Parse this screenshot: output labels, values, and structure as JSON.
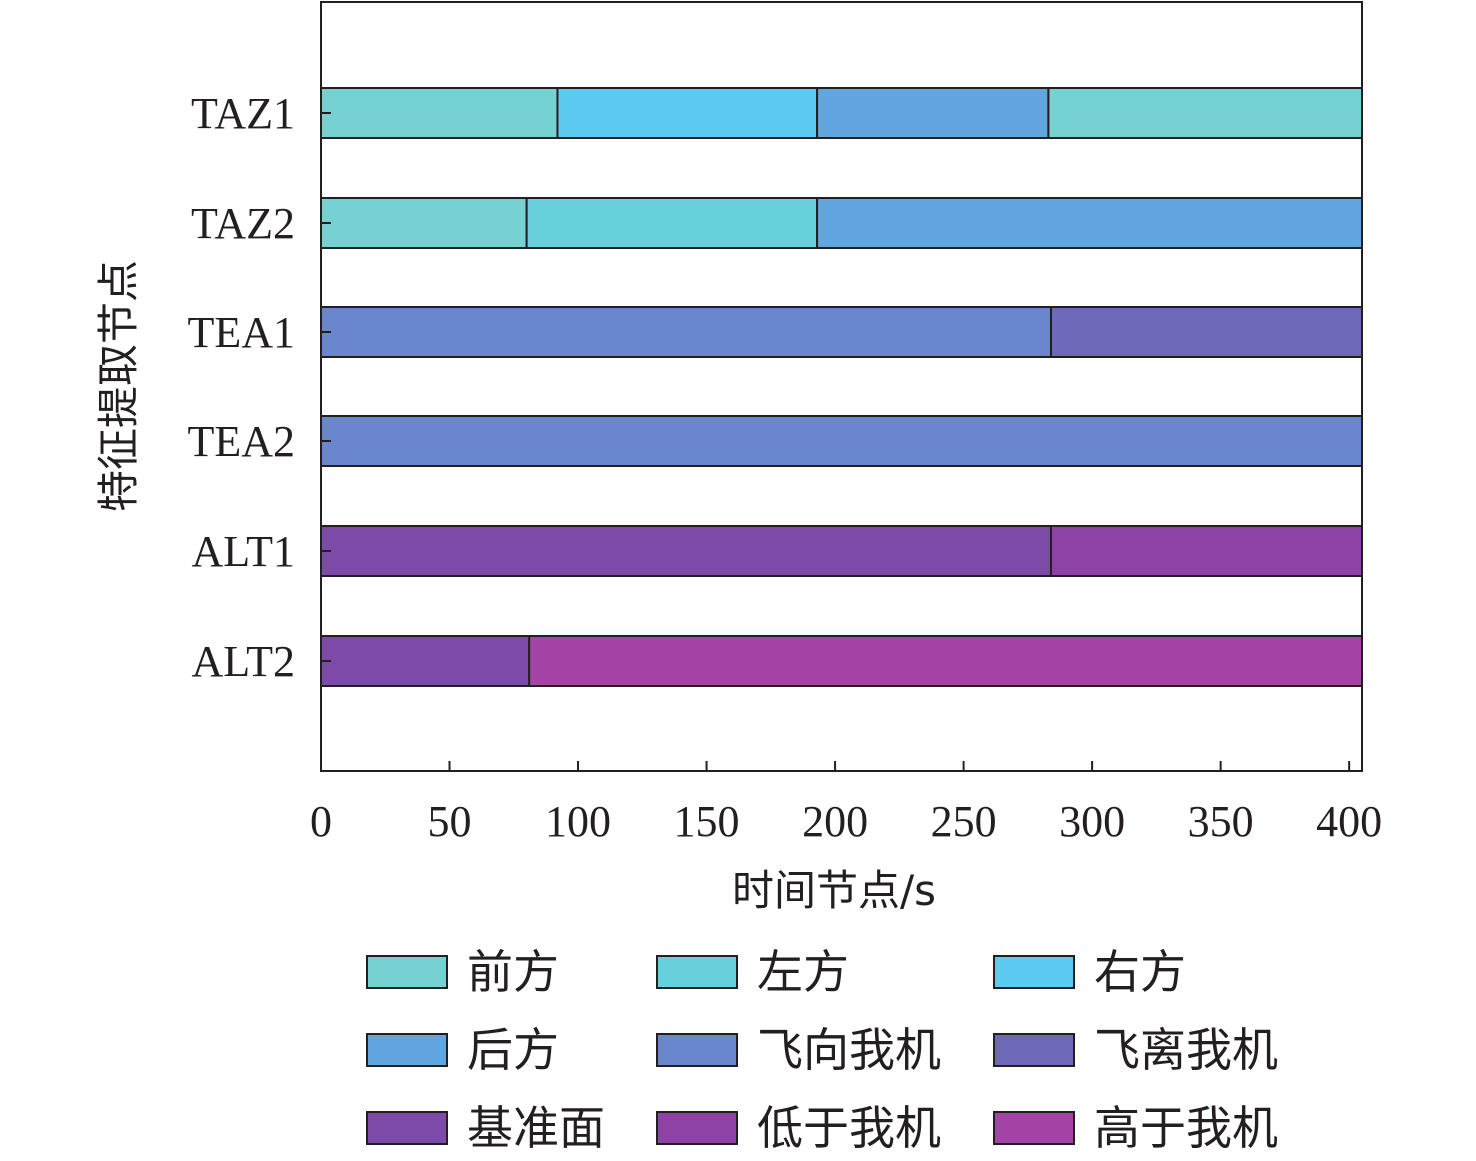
{
  "chart_data": {
    "type": "bar",
    "orientation": "horizontal-stacked-timeline",
    "xlabel": "时间节点/s",
    "ylabel": "特征提取节点",
    "xlim": [
      0,
      405
    ],
    "xticks": [
      0,
      50,
      100,
      150,
      200,
      250,
      300,
      350,
      400
    ],
    "categories": [
      "TAZ1",
      "TAZ2",
      "TEA1",
      "TEA2",
      "ALT1",
      "ALT2"
    ],
    "series": [
      {
        "category": "TAZ1",
        "segments": [
          {
            "start": 0,
            "end": 92,
            "state": "前方"
          },
          {
            "start": 92,
            "end": 193,
            "state": "右方"
          },
          {
            "start": 193,
            "end": 283,
            "state": "后方"
          },
          {
            "start": 283,
            "end": 405,
            "state": "前方"
          }
        ]
      },
      {
        "category": "TAZ2",
        "segments": [
          {
            "start": 0,
            "end": 80,
            "state": "前方"
          },
          {
            "start": 80,
            "end": 193,
            "state": "左方"
          },
          {
            "start": 193,
            "end": 405,
            "state": "后方"
          }
        ]
      },
      {
        "category": "TEA1",
        "segments": [
          {
            "start": 0,
            "end": 284,
            "state": "飞向我机"
          },
          {
            "start": 284,
            "end": 405,
            "state": "飞离我机"
          }
        ]
      },
      {
        "category": "TEA2",
        "segments": [
          {
            "start": 0,
            "end": 405,
            "state": "飞向我机"
          }
        ]
      },
      {
        "category": "ALT1",
        "segments": [
          {
            "start": 0,
            "end": 284,
            "state": "基准面"
          },
          {
            "start": 284,
            "end": 405,
            "state": "低于我机"
          }
        ]
      },
      {
        "category": "ALT2",
        "segments": [
          {
            "start": 0,
            "end": 81,
            "state": "基准面"
          },
          {
            "start": 81,
            "end": 405,
            "state": "高于我机"
          }
        ]
      }
    ],
    "legend": [
      {
        "label": "前方",
        "color": "#76d2d2"
      },
      {
        "label": "左方",
        "color": "#68d0dc"
      },
      {
        "label": "右方",
        "color": "#5ccbf2"
      },
      {
        "label": "后方",
        "color": "#62a6e0"
      },
      {
        "label": "飞向我机",
        "color": "#6a86cc"
      },
      {
        "label": "飞离我机",
        "color": "#6b69b8"
      },
      {
        "label": "基准面",
        "color": "#7d4aa8"
      },
      {
        "label": "低于我机",
        "color": "#8e42a6"
      },
      {
        "label": "高于我机",
        "color": "#a444a6"
      }
    ],
    "legend_position": "bottom"
  }
}
